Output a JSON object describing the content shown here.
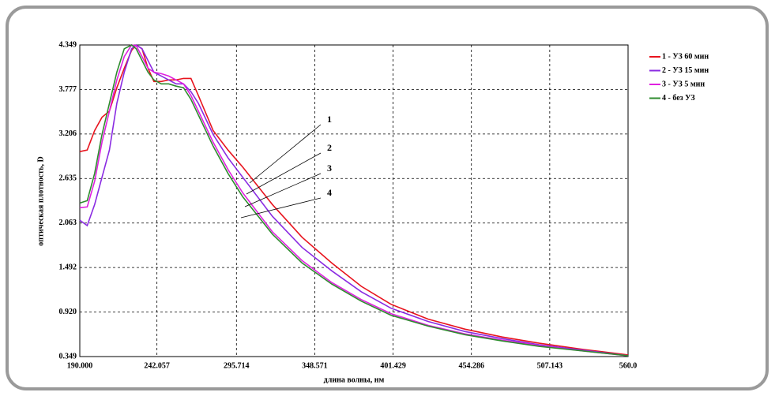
{
  "chart_data": {
    "type": "line",
    "ylabel": "оптическая плотность, D",
    "xlabel": "длина волны, нм",
    "x": [
      190,
      195,
      200,
      205,
      210,
      215,
      220,
      225,
      228,
      232,
      236,
      240,
      245,
      250,
      255,
      260,
      265,
      270,
      280,
      290,
      300,
      320,
      340,
      360,
      380,
      400,
      425,
      450,
      475,
      500,
      530,
      560
    ],
    "series": [
      {
        "name": "1 - УЗ 60 мин",
        "color": "#e8141e",
        "values": [
          2.98,
          3.0,
          3.25,
          3.42,
          3.5,
          3.8,
          4.05,
          4.28,
          4.349,
          4.3,
          4.05,
          3.88,
          3.88,
          3.9,
          3.9,
          3.92,
          3.92,
          3.7,
          3.25,
          3.0,
          2.78,
          2.3,
          1.88,
          1.55,
          1.25,
          1.02,
          0.83,
          0.7,
          0.6,
          0.52,
          0.44,
          0.37
        ]
      },
      {
        "name": "2 - УЗ 15 мин",
        "color": "#8a2be2",
        "values": [
          2.1,
          2.03,
          2.3,
          2.65,
          3.0,
          3.6,
          4.0,
          4.3,
          4.349,
          4.3,
          4.15,
          4.0,
          3.95,
          3.9,
          3.85,
          3.85,
          3.75,
          3.6,
          3.2,
          2.9,
          2.65,
          2.15,
          1.75,
          1.45,
          1.18,
          0.97,
          0.8,
          0.67,
          0.58,
          0.5,
          0.43,
          0.36
        ]
      },
      {
        "name": "3 - УЗ 5 мин",
        "color": "#e020e0",
        "values": [
          2.26,
          2.27,
          2.6,
          3.1,
          3.5,
          3.9,
          4.2,
          4.349,
          4.34,
          4.2,
          4.05,
          4.0,
          3.98,
          3.95,
          3.9,
          3.85,
          3.7,
          3.5,
          3.1,
          2.75,
          2.45,
          1.95,
          1.58,
          1.3,
          1.08,
          0.9,
          0.75,
          0.64,
          0.56,
          0.49,
          0.42,
          0.36
        ]
      },
      {
        "name": "4 - без УЗ",
        "color": "#2e8b2e",
        "values": [
          2.32,
          2.35,
          2.7,
          3.2,
          3.6,
          4.0,
          4.3,
          4.349,
          4.3,
          4.15,
          4.0,
          3.9,
          3.85,
          3.85,
          3.82,
          3.8,
          3.65,
          3.45,
          3.05,
          2.7,
          2.4,
          1.92,
          1.55,
          1.28,
          1.06,
          0.88,
          0.74,
          0.63,
          0.55,
          0.48,
          0.42,
          0.36
        ]
      }
    ],
    "xlim": [
      190,
      560
    ],
    "ylim": [
      0.349,
      4.349
    ],
    "xticks": [
      {
        "value": 190,
        "label": "190.000"
      },
      {
        "value": 242.057,
        "label": "242.057"
      },
      {
        "value": 295.714,
        "label": "295.714"
      },
      {
        "value": 348.571,
        "label": "348.571"
      },
      {
        "value": 401.429,
        "label": "401.429"
      },
      {
        "value": 454.286,
        "label": "454.286"
      },
      {
        "value": 507.143,
        "label": "507.143"
      },
      {
        "value": 560,
        "label": "560.0"
      }
    ],
    "yticks": [
      {
        "value": 0.349,
        "label": "0.349"
      },
      {
        "value": 0.92,
        "label": "0.920"
      },
      {
        "value": 1.492,
        "label": "1.492"
      },
      {
        "value": 2.063,
        "label": "2.063"
      },
      {
        "value": 2.635,
        "label": "2.635"
      },
      {
        "value": 3.206,
        "label": "3.206"
      },
      {
        "value": 3.777,
        "label": "3.777"
      },
      {
        "value": 4.349,
        "label": "4.349"
      }
    ],
    "grid": true,
    "legend": "right",
    "annotations": [
      "1",
      "2",
      "3",
      "4"
    ]
  }
}
